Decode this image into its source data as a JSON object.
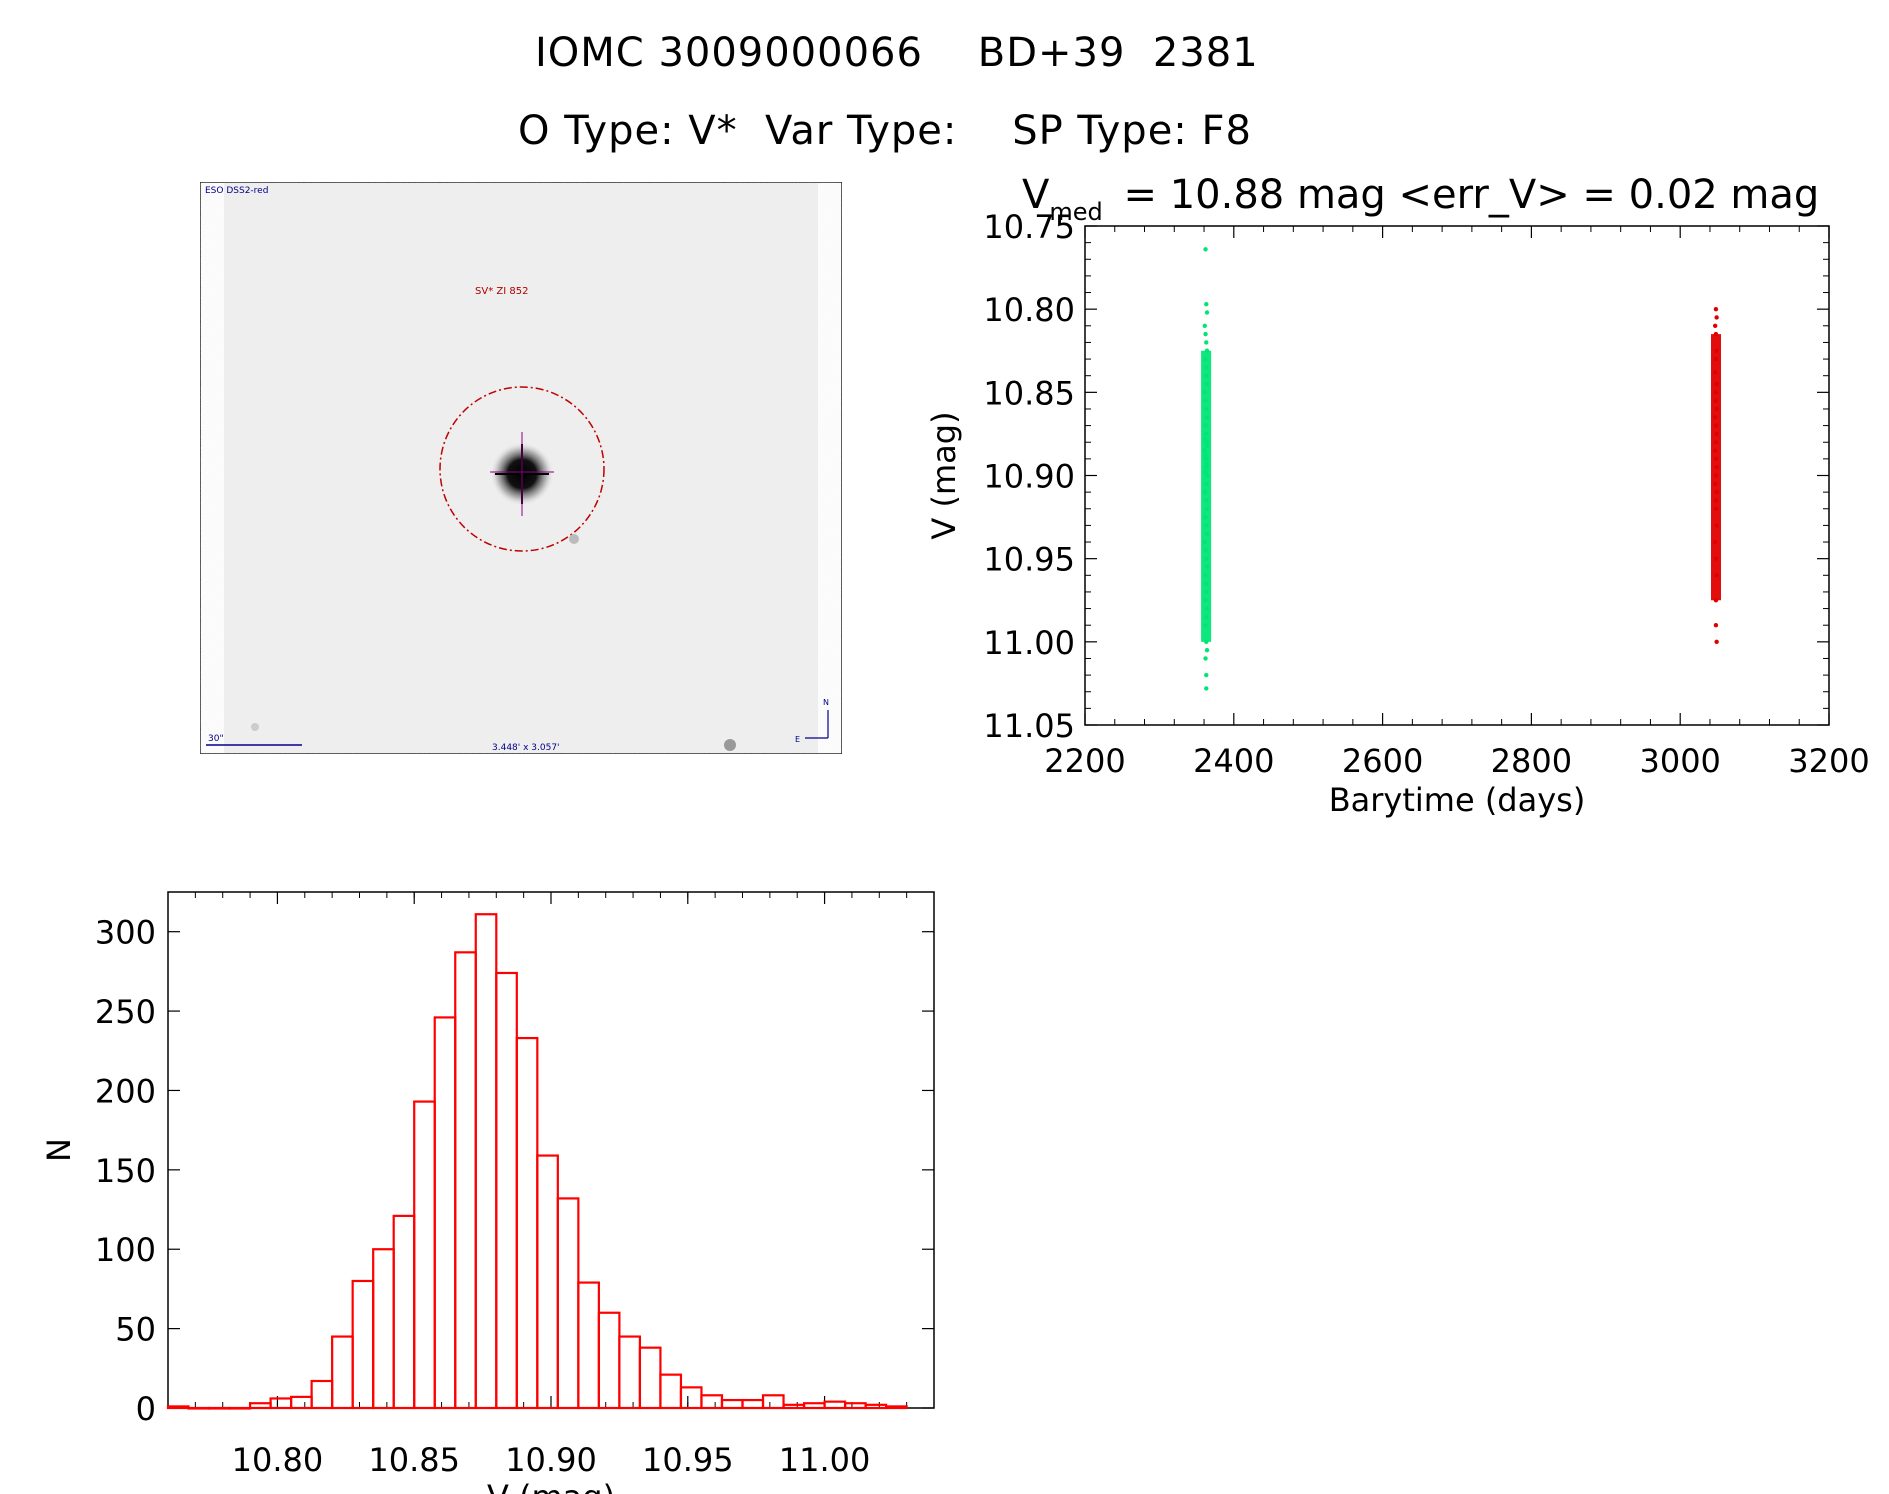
{
  "header": {
    "line1": "IOMC 3009000066    BD+39  2381",
    "line2": "O Type: V*  Var Type:    SP Type: F8"
  },
  "finder": {
    "survey_label": "ESO DSS2-red",
    "object_label": "SV* ZI 852",
    "scale_label": "30\"",
    "fov_label": "3.448' x 3.057'",
    "north_label": "N",
    "east_label": "E"
  },
  "colors": {
    "series_early": "#00e676",
    "series_late": "#e00000",
    "histogram": "#ff0000",
    "finder_text": "#00008b",
    "finder_circle": "#c00000"
  },
  "chart_data": [
    {
      "type": "scatter",
      "title_main": "V",
      "title_sub": "med",
      "title_rest": "= 10.88 mag <err_V> = 0.02 mag",
      "xlabel": "Barytime (days)",
      "ylabel": "V (mag)",
      "xlim": [
        2200,
        3200
      ],
      "ylim": [
        11.05,
        10.75
      ],
      "y_inverted": true,
      "xticks": [
        2200,
        2400,
        2600,
        2800,
        3000,
        3200
      ],
      "xtick_labels": [
        "2200",
        "2400",
        "2600",
        "2800",
        "3000",
        "3200"
      ],
      "yticks": [
        10.75,
        10.8,
        10.85,
        10.9,
        10.95,
        11.0,
        11.05
      ],
      "ytick_labels": [
        "10.75",
        "10.80",
        "10.85",
        "10.90",
        "10.95",
        "11.00",
        "11.05"
      ],
      "series": [
        {
          "x": [
            2362,
            2363,
            2364,
            2361,
            2362,
            2363,
            2364,
            2362,
            2363,
            2363,
            2364,
            2361,
            2362,
            2363,
            2364,
            2362,
            2363,
            2362,
            2363,
            2364,
            2361,
            2362,
            2363,
            2364,
            2363,
            2362,
            2364,
            2363,
            2362,
            2363,
            2364,
            2362,
            2363,
            2364,
            2361,
            2362,
            2363,
            2364,
            2362,
            2363,
            2363,
            2362,
            2364,
            2363,
            2362,
            2363,
            2364,
            2362,
            2363,
            2363
          ],
          "y": [
            10.764,
            10.797,
            10.802,
            10.81,
            10.815,
            10.82,
            10.825,
            10.83,
            10.835,
            10.84,
            10.845,
            10.85,
            10.855,
            10.86,
            10.865,
            10.87,
            10.875,
            10.878,
            10.88,
            10.882,
            10.885,
            10.888,
            10.89,
            10.893,
            10.895,
            10.898,
            10.9,
            10.905,
            10.91,
            10.915,
            10.92,
            10.925,
            10.93,
            10.935,
            10.94,
            10.945,
            10.95,
            10.955,
            10.96,
            10.965,
            10.97,
            10.975,
            10.98,
            10.985,
            10.99,
            11.0,
            11.005,
            11.01,
            11.02,
            11.028
          ]
        },
        {
          "x": [
            3048,
            3049,
            3047,
            3048,
            3049,
            3048,
            3047,
            3049,
            3048,
            3048,
            3049,
            3047,
            3048,
            3049,
            3048,
            3047,
            3048,
            3049,
            3048,
            3047,
            3049,
            3048,
            3048,
            3049,
            3047,
            3048,
            3049,
            3048,
            3048,
            3049
          ],
          "y": [
            10.8,
            10.805,
            10.81,
            10.815,
            10.825,
            10.83,
            10.838,
            10.845,
            10.85,
            10.855,
            10.86,
            10.865,
            10.87,
            10.875,
            10.88,
            10.885,
            10.89,
            10.895,
            10.9,
            10.905,
            10.91,
            10.915,
            10.92,
            10.93,
            10.94,
            10.95,
            10.96,
            10.975,
            10.99,
            11.0
          ]
        }
      ]
    },
    {
      "type": "bar",
      "xlabel": "V (mag)",
      "ylabel": "N",
      "xlim": [
        10.76,
        11.04
      ],
      "ylim": [
        0,
        325
      ],
      "xticks": [
        10.8,
        10.85,
        10.9,
        10.95,
        11.0
      ],
      "xtick_labels": [
        "10.80",
        "10.85",
        "10.90",
        "10.95",
        "11.00"
      ],
      "yticks": [
        0,
        50,
        100,
        150,
        200,
        250,
        300
      ],
      "ytick_labels": [
        "0",
        "50",
        "100",
        "150",
        "200",
        "250",
        "300"
      ],
      "bin_start": 10.76,
      "bin_width": 0.0075,
      "values": [
        1,
        0,
        0,
        0,
        3,
        6,
        7,
        17,
        45,
        80,
        100,
        121,
        193,
        246,
        287,
        311,
        274,
        233,
        159,
        132,
        79,
        60,
        45,
        38,
        21,
        13,
        8,
        5,
        5,
        8,
        2,
        3,
        4,
        3,
        2,
        1
      ]
    }
  ]
}
